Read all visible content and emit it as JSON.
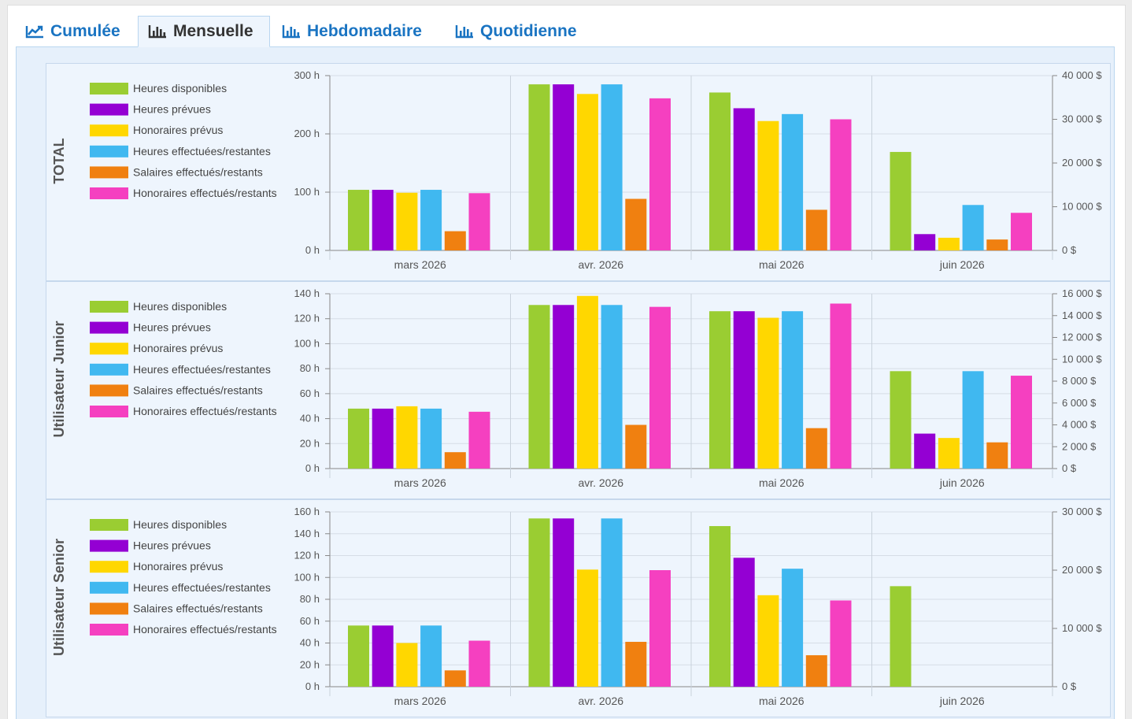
{
  "tabs": [
    {
      "label": "Cumulée",
      "icon": "line-chart-icon",
      "active": false
    },
    {
      "label": "Mensuelle",
      "icon": "bar-chart-icon",
      "active": true
    },
    {
      "label": "Hebdomadaire",
      "icon": "bar-chart-icon",
      "active": false
    },
    {
      "label": "Quotidienne",
      "icon": "bar-chart-icon",
      "active": false
    }
  ],
  "colors": {
    "heures_disponibles": "#9acd32",
    "heures_prevues": "#9400d3",
    "honoraires_prevus": "#ffd700",
    "heures_effectuees": "#40b8f0",
    "salaires_effectues": "#f08010",
    "honoraires_effectues": "#f540c0"
  },
  "chart_data": [
    {
      "type": "bar",
      "title": "TOTAL",
      "categories": [
        "mars 2026",
        "avr. 2026",
        "mai 2026",
        "juin 2026"
      ],
      "ylim_left": [
        0,
        300
      ],
      "yticks_left": [
        0,
        100,
        200,
        300
      ],
      "ytick_labels_left": [
        "0 h",
        "100 h",
        "200 h",
        "300 h"
      ],
      "ylim_right": [
        0,
        40000
      ],
      "yticks_right": [
        0,
        10000,
        20000,
        30000,
        40000
      ],
      "ytick_labels_right": [
        "0 $",
        "10 000 $",
        "20 000 $",
        "30 000 $",
        "40 000 $"
      ],
      "series": [
        {
          "name": "Heures disponibles",
          "axis": "left",
          "color": "#9acd32",
          "values": [
            104,
            285,
            271,
            169
          ]
        },
        {
          "name": "Heures prévues",
          "axis": "left",
          "color": "#9400d3",
          "values": [
            104,
            285,
            244,
            28
          ]
        },
        {
          "name": "Honoraires prévus",
          "axis": "right",
          "color": "#ffd700",
          "values": [
            13200,
            35800,
            29600,
            2900
          ]
        },
        {
          "name": "Heures effectuées/restantes",
          "axis": "left",
          "color": "#40b8f0",
          "values": [
            104,
            285,
            234,
            78
          ]
        },
        {
          "name": "Salaires effectués/restants",
          "axis": "right",
          "color": "#f08010",
          "values": [
            4400,
            11800,
            9300,
            2500
          ]
        },
        {
          "name": "Honoraires effectués/restants",
          "axis": "right",
          "color": "#f540c0",
          "values": [
            13100,
            34800,
            30000,
            8600
          ]
        }
      ]
    },
    {
      "type": "bar",
      "title": "Utilisateur Junior",
      "categories": [
        "mars 2026",
        "avr. 2026",
        "mai 2026",
        "juin 2026"
      ],
      "ylim_left": [
        0,
        140
      ],
      "yticks_left": [
        0,
        20,
        40,
        60,
        80,
        100,
        120,
        140
      ],
      "ytick_labels_left": [
        "0 h",
        "20 h",
        "40 h",
        "60 h",
        "80 h",
        "100 h",
        "120 h",
        "140 h"
      ],
      "ylim_right": [
        0,
        16000
      ],
      "yticks_right": [
        0,
        2000,
        4000,
        6000,
        8000,
        10000,
        12000,
        14000,
        16000
      ],
      "ytick_labels_right": [
        "0 $",
        "2 000 $",
        "4 000 $",
        "6 000 $",
        "8 000 $",
        "10 000 $",
        "12 000 $",
        "14 000 $",
        "16 000 $"
      ],
      "series": [
        {
          "name": "Heures disponibles",
          "axis": "left",
          "color": "#9acd32",
          "values": [
            48,
            131,
            126,
            78
          ]
        },
        {
          "name": "Heures prévues",
          "axis": "left",
          "color": "#9400d3",
          "values": [
            48,
            131,
            126,
            28
          ]
        },
        {
          "name": "Honoraires prévus",
          "axis": "right",
          "color": "#ffd700",
          "values": [
            5700,
            15800,
            13800,
            2800
          ]
        },
        {
          "name": "Heures effectuées/restantes",
          "axis": "left",
          "color": "#40b8f0",
          "values": [
            48,
            131,
            126,
            78
          ]
        },
        {
          "name": "Salaires effectués/restants",
          "axis": "right",
          "color": "#f08010",
          "values": [
            1500,
            4000,
            3700,
            2400
          ]
        },
        {
          "name": "Honoraires effectués/restants",
          "axis": "right",
          "color": "#f540c0",
          "values": [
            5200,
            14800,
            15100,
            8500
          ]
        }
      ]
    },
    {
      "type": "bar",
      "title": "Utilisateur Senior",
      "categories": [
        "mars 2026",
        "avr. 2026",
        "mai 2026",
        "juin 2026"
      ],
      "ylim_left": [
        0,
        160
      ],
      "yticks_left": [
        0,
        20,
        40,
        60,
        80,
        100,
        120,
        140,
        160
      ],
      "ytick_labels_left": [
        "0 h",
        "20 h",
        "40 h",
        "60 h",
        "80 h",
        "100 h",
        "120 h",
        "140 h",
        "160 h"
      ],
      "ylim_right": [
        0,
        30000
      ],
      "yticks_right": [
        0,
        10000,
        20000,
        30000
      ],
      "ytick_labels_right": [
        "0 $",
        "10 000 $",
        "20 000 $",
        "30 000 $"
      ],
      "series": [
        {
          "name": "Heures disponibles",
          "axis": "left",
          "color": "#9acd32",
          "values": [
            56,
            154,
            147,
            92
          ]
        },
        {
          "name": "Heures prévues",
          "axis": "left",
          "color": "#9400d3",
          "values": [
            56,
            154,
            118,
            0
          ]
        },
        {
          "name": "Honoraires prévus",
          "axis": "right",
          "color": "#ffd700",
          "values": [
            7500,
            20100,
            15700,
            0
          ]
        },
        {
          "name": "Heures effectuées/restantes",
          "axis": "left",
          "color": "#40b8f0",
          "values": [
            56,
            154,
            108,
            0
          ]
        },
        {
          "name": "Salaires effectués/restants",
          "axis": "right",
          "color": "#f08010",
          "values": [
            2800,
            7700,
            5400,
            0
          ]
        },
        {
          "name": "Honoraires effectués/restants",
          "axis": "right",
          "color": "#f540c0",
          "values": [
            7900,
            20000,
            14800,
            0
          ]
        }
      ]
    }
  ]
}
